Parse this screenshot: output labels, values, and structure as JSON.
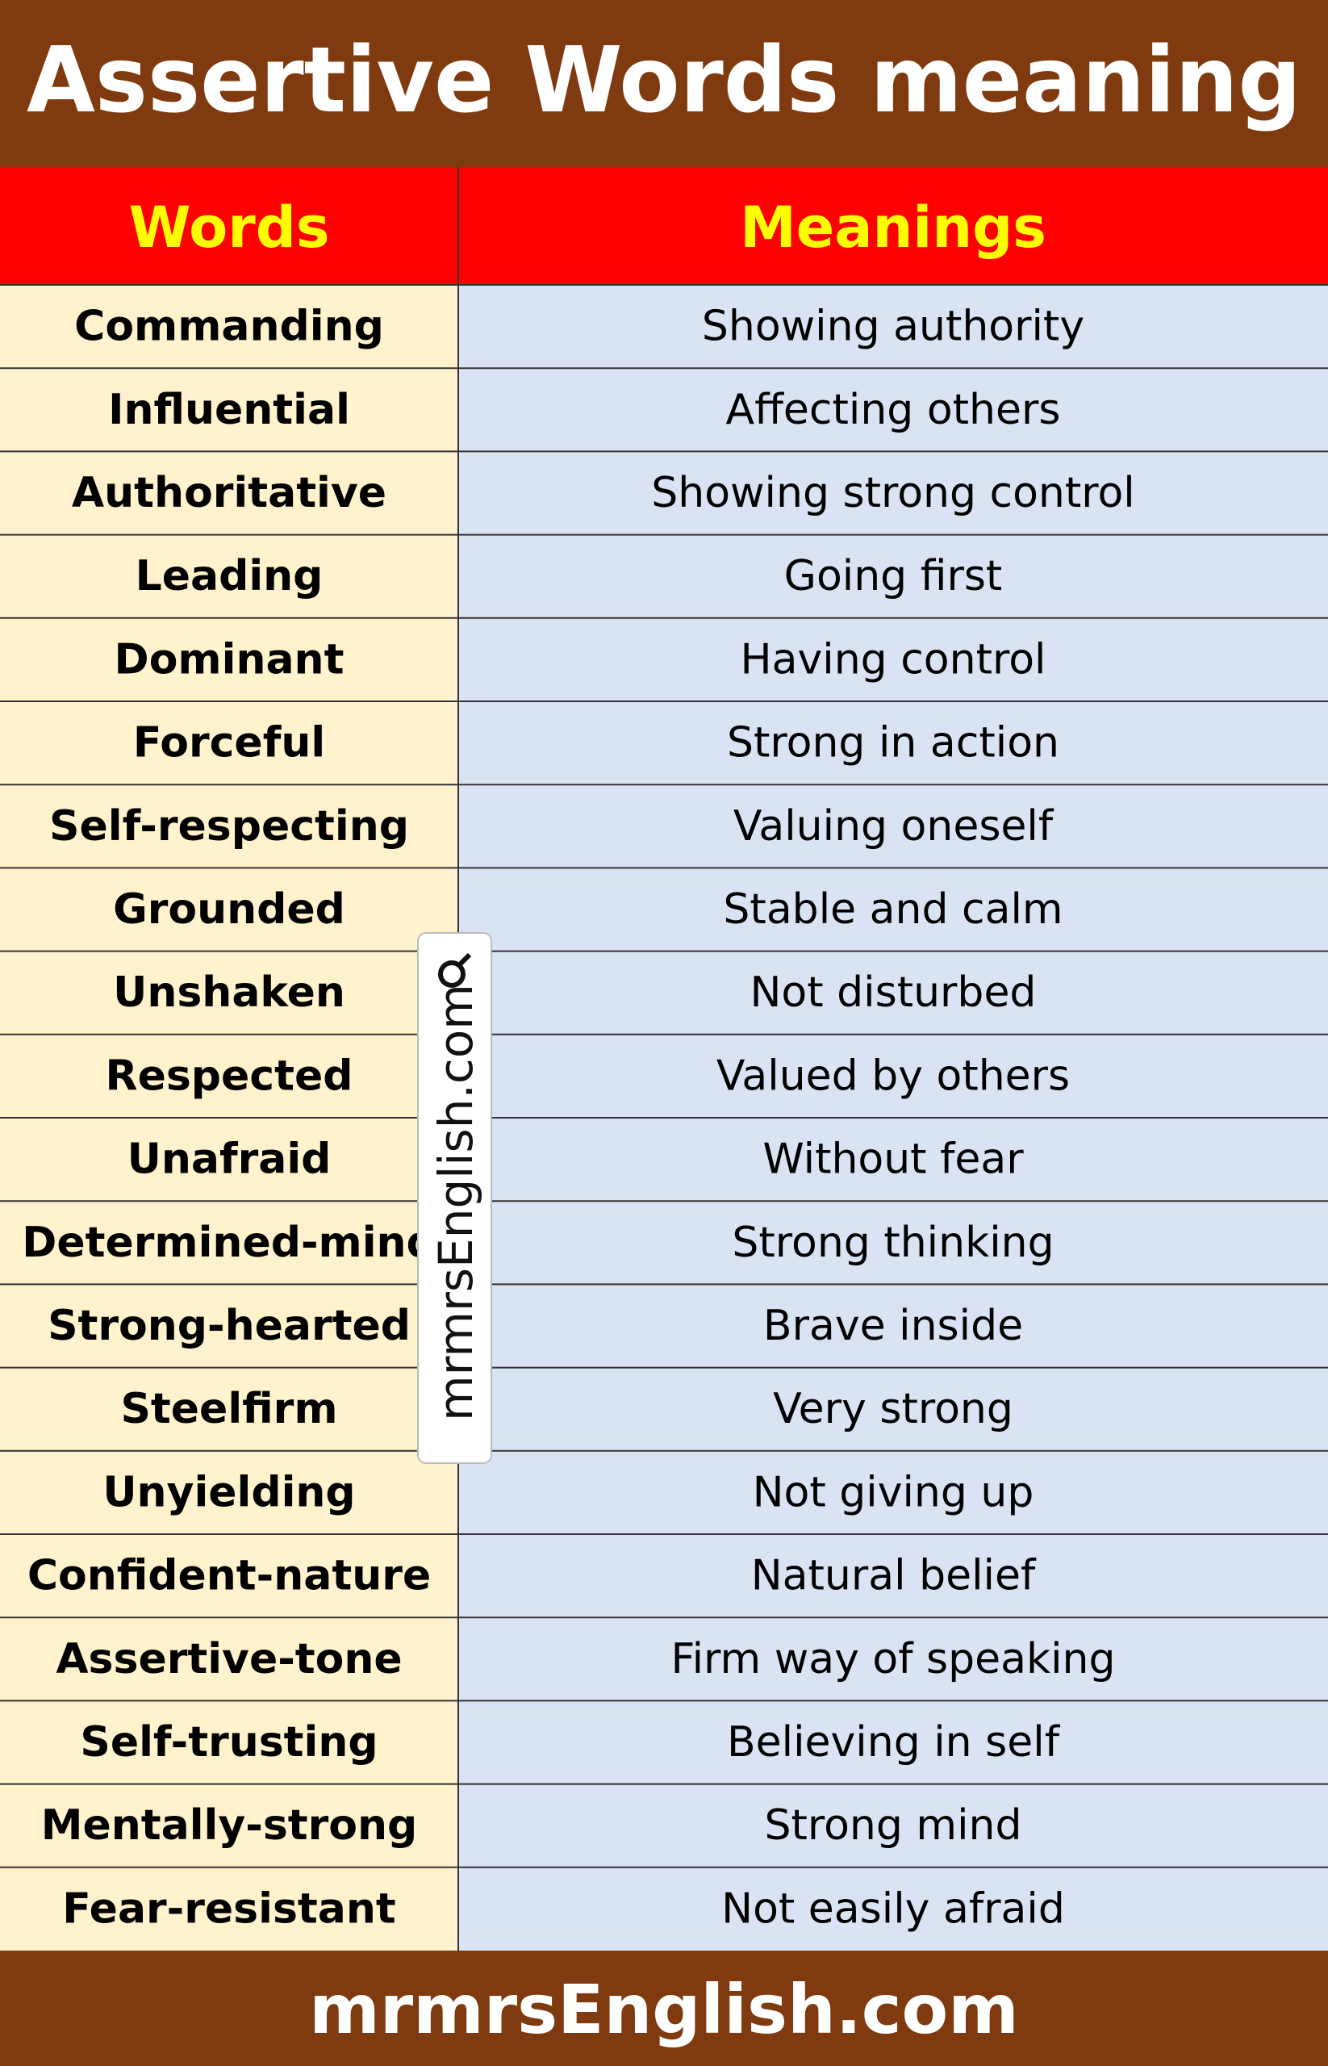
{
  "header": {
    "title": "Assertive Words meaning"
  },
  "table": {
    "columns": [
      "Words",
      "Meanings"
    ],
    "rows": [
      [
        "Commanding",
        "Showing authority"
      ],
      [
        "Influential",
        "Affecting others"
      ],
      [
        "Authoritative",
        "Showing strong control"
      ],
      [
        "Leading",
        "Going first"
      ],
      [
        "Dominant",
        "Having control"
      ],
      [
        "Forceful",
        "Strong in action"
      ],
      [
        "Self-respecting",
        "Valuing oneself"
      ],
      [
        "Grounded",
        "Stable and calm"
      ],
      [
        "Unshaken",
        "Not disturbed"
      ],
      [
        "Respected",
        "Valued by others"
      ],
      [
        "Unafraid",
        "Without fear"
      ],
      [
        "Determined-mind",
        "Strong thinking"
      ],
      [
        "Strong-hearted",
        "Brave inside"
      ],
      [
        "Steelfirm",
        "Very strong"
      ],
      [
        "Unyielding",
        "Not giving up"
      ],
      [
        "Confident-nature",
        "Natural belief"
      ],
      [
        "Assertive-tone",
        "Firm way of speaking"
      ],
      [
        "Self-trusting",
        "Believing in self"
      ],
      [
        "Mentally-strong",
        "Strong mind"
      ],
      [
        "Fear-resistant",
        "Not easily afraid"
      ]
    ]
  },
  "watermark": "mrmrsEnglish.com",
  "footer": "mrmrsEnglish.com"
}
